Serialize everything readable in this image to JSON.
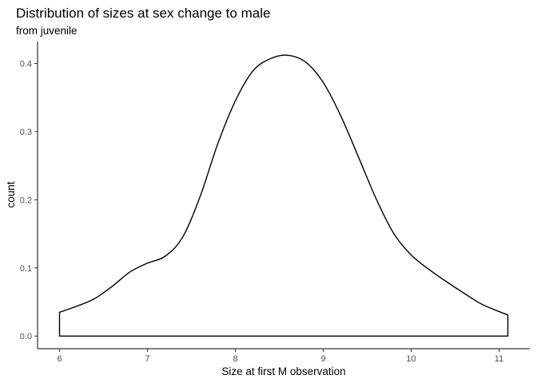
{
  "chart_data": {
    "type": "area",
    "title": "Distribution of sizes at sex change to male",
    "subtitle": "from juvenile",
    "xlabel": "Size at first M observation",
    "ylabel": "count",
    "xlim": [
      5.75,
      11.35
    ],
    "ylim": [
      -0.0185,
      0.4322
    ],
    "x_ticks": [
      6,
      7,
      8,
      9,
      10,
      11
    ],
    "x_tick_labels": [
      "6",
      "7",
      "8",
      "9",
      "10",
      "11"
    ],
    "y_ticks": [
      0.0,
      0.1,
      0.2,
      0.3,
      0.4
    ],
    "y_tick_labels": [
      "0.0",
      "0.1",
      "0.2",
      "0.3",
      "0.4"
    ],
    "grid": false,
    "colors": {
      "line": "#000000",
      "fill": "none",
      "background": "#ffffff",
      "axis": "#000000",
      "tick_label": "#4d4d4d"
    },
    "series": [
      {
        "x": [
          6.0,
          6.2,
          6.4,
          6.6,
          6.8,
          7.0,
          7.2,
          7.4,
          7.6,
          7.8,
          8.0,
          8.2,
          8.4,
          8.6,
          8.8,
          9.0,
          9.2,
          9.4,
          9.6,
          9.8,
          10.0,
          10.2,
          10.4,
          10.6,
          10.8,
          11.0,
          11.1
        ],
        "y": [
          0.035,
          0.044,
          0.055,
          0.073,
          0.094,
          0.107,
          0.117,
          0.145,
          0.205,
          0.282,
          0.345,
          0.389,
          0.407,
          0.412,
          0.402,
          0.372,
          0.323,
          0.263,
          0.202,
          0.151,
          0.119,
          0.098,
          0.08,
          0.063,
          0.047,
          0.036,
          0.031
        ]
      }
    ]
  }
}
